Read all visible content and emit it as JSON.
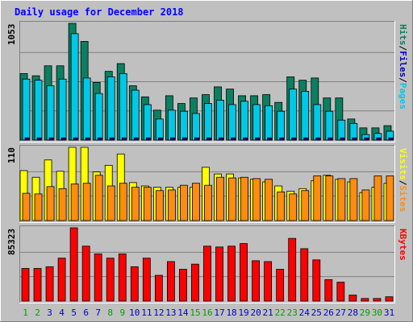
{
  "chart_data": {
    "title": "Daily usage for December 2018",
    "categories": [
      "1",
      "2",
      "3",
      "4",
      "5",
      "6",
      "7",
      "8",
      "9",
      "10",
      "11",
      "12",
      "13",
      "14",
      "15",
      "16",
      "17",
      "18",
      "19",
      "20",
      "21",
      "22",
      "23",
      "24",
      "25",
      "26",
      "27",
      "28",
      "29",
      "30",
      "31"
    ],
    "weekend_days": [
      "1",
      "2",
      "8",
      "9",
      "15",
      "16",
      "22",
      "23",
      "29",
      "30"
    ],
    "panels": [
      {
        "type": "bar",
        "ymax_label": "1053",
        "ylim": [
          0,
          1053
        ],
        "label_parts": [
          "Pages",
          "/",
          "Files",
          "/",
          "Hits"
        ],
        "series": [
          {
            "name": "Hits",
            "color": "#0a8060",
            "values": [
              600,
              580,
              670,
              670,
              1053,
              890,
              520,
              620,
              690,
              490,
              390,
              270,
              400,
              330,
              380,
              410,
              480,
              460,
              400,
              400,
              410,
              340,
              570,
              540,
              560,
              380,
              380,
              190,
              110,
              110,
              130
            ]
          },
          {
            "name": "Files",
            "color": "#00c8e6",
            "values": [
              550,
              540,
              490,
              550,
              960,
              560,
              420,
              570,
              600,
              450,
              320,
              190,
              270,
              260,
              240,
              330,
              360,
              320,
              350,
              320,
              310,
              260,
              460,
              440,
              320,
              260,
              180,
              150,
              50,
              60,
              80
            ]
          },
          {
            "name": "Pages",
            "color": "#0000aa",
            "values": [
              20,
              20,
              20,
              20,
              20,
              20,
              20,
              20,
              20,
              20,
              20,
              20,
              20,
              20,
              20,
              20,
              20,
              20,
              20,
              20,
              20,
              20,
              20,
              20,
              20,
              20,
              20,
              20,
              20,
              20,
              20
            ]
          }
        ],
        "label_colors": [
          "#00c8e6",
          "#0000cc",
          "#0a8060"
        ]
      },
      {
        "type": "bar",
        "ymax_label": "110",
        "ylim": [
          0,
          110
        ],
        "label_parts": [
          "Sites",
          "/",
          "Visits"
        ],
        "series": [
          {
            "name": "Visits",
            "color": "#ffff00",
            "values": [
              75,
              65,
              91,
              74,
              110,
              110,
              73,
              83,
              100,
              57,
              52,
              50,
              50,
              50,
              50,
              80,
              70,
              70,
              64,
              62,
              58,
              52,
              44,
              48,
              60,
              68,
              62,
              58,
              42,
              50,
              56
            ]
          },
          {
            "name": "Sites",
            "color": "#ff8c10",
            "values": [
              41,
              40,
              51,
              48,
              55,
              56,
              68,
              52,
              56,
              50,
              50,
              45,
              46,
              53,
              56,
              53,
              65,
              64,
              65,
              63,
              62,
              43,
              40,
              45,
              67,
              67,
              63,
              63,
              46,
              67,
              67
            ]
          }
        ],
        "label_colors": [
          "#ff8c10",
          "#ffff00"
        ]
      },
      {
        "type": "bar",
        "ymax_label": "85323",
        "ylim": [
          0,
          85323
        ],
        "label_parts": [
          "KBytes"
        ],
        "series": [
          {
            "name": "KBytes",
            "color": "#ff0000",
            "values": [
              38000,
              38000,
              40000,
              50000,
              85323,
              64000,
              55000,
              50000,
              55000,
              40000,
              50000,
              30000,
              46000,
              37000,
              43000,
              64000,
              63000,
              64000,
              67000,
              47000,
              46000,
              37000,
              73000,
              61000,
              48000,
              25000,
              22000,
              7000,
              3000,
              3000,
              5000
            ]
          }
        ],
        "label_colors": [
          "#ff0000"
        ]
      }
    ],
    "colors": {
      "background": "#c0c0c0",
      "title": "#0000ff",
      "axis_text": "#0000cc",
      "weekday_label": "#0000cc",
      "weekend_label": "#00a000",
      "grid": "#808080"
    }
  }
}
